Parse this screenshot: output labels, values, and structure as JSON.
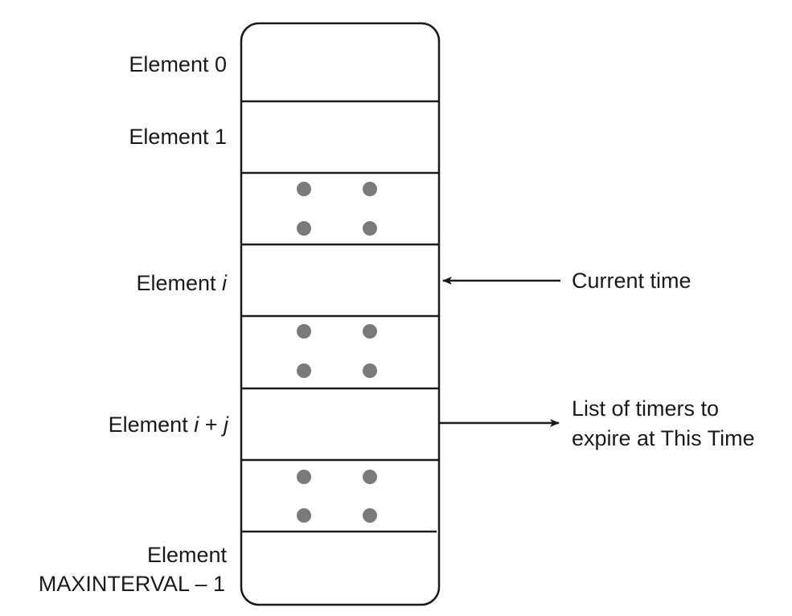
{
  "elements": {
    "element_0": "Element 0",
    "element_1": "Element 1",
    "element_i": {
      "prefix": "Element ",
      "var": "i"
    },
    "element_i_plus_j": {
      "prefix": "Element ",
      "var1": "i",
      "op": " + ",
      "var2": "j"
    },
    "element_max": {
      "line1": "Element",
      "line2": "MAXINTERVAL – 1"
    }
  },
  "annotations": {
    "current_time": "Current time",
    "timer_list": {
      "line1": "List of timers to",
      "line2": "expire at This Time"
    }
  },
  "colors": {
    "stroke": "#1a1a1a",
    "ellipsis_dot": "#7a7a7a"
  }
}
